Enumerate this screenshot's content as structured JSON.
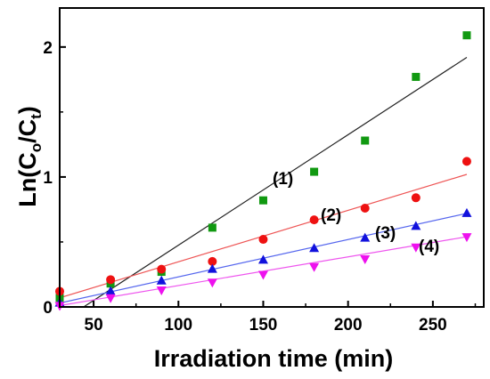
{
  "chart_data": {
    "type": "scatter",
    "title": "",
    "xlabel": "Irradiation time (min)",
    "ylabel": {
      "prefix": "Ln(C",
      "sub1": "o",
      "mid": "/C",
      "sub2": "t",
      "suffix": ")"
    },
    "xlim": [
      30,
      280
    ],
    "ylim": [
      0,
      2.3
    ],
    "xticks": [
      50,
      100,
      150,
      200,
      250
    ],
    "yticks": [
      0,
      1,
      2
    ],
    "grid": false,
    "legend": "none",
    "x": [
      30,
      60,
      90,
      120,
      150,
      180,
      210,
      240,
      270
    ],
    "series": [
      {
        "name": "(1)",
        "marker": "square",
        "color": "#119911",
        "line_color": "#222222",
        "values": [
          0.07,
          0.18,
          0.27,
          0.61,
          0.82,
          1.04,
          1.28,
          1.77,
          2.09
        ],
        "fit": {
          "x": [
            30,
            270
          ],
          "y": [
            -0.12,
            1.92
          ]
        }
      },
      {
        "name": "(2)",
        "marker": "circle",
        "color": "#ee1111",
        "line_color": "#ee5555",
        "values": [
          0.12,
          0.21,
          0.29,
          0.35,
          0.52,
          0.67,
          0.76,
          0.84,
          1.12
        ],
        "fit": {
          "x": [
            30,
            270
          ],
          "y": [
            0.07,
            1.02
          ]
        }
      },
      {
        "name": "(3)",
        "marker": "triangle-up",
        "color": "#1111dd",
        "line_color": "#5566ee",
        "values": [
          0.03,
          0.12,
          0.2,
          0.29,
          0.36,
          0.45,
          0.53,
          0.62,
          0.72
        ],
        "fit": {
          "x": [
            30,
            270
          ],
          "y": [
            0.03,
            0.72
          ]
        }
      },
      {
        "name": "(4)",
        "marker": "triangle-down",
        "color": "#ee11ee",
        "line_color": "#ee55ee",
        "values": [
          0.01,
          0.07,
          0.13,
          0.19,
          0.25,
          0.31,
          0.37,
          0.46,
          0.54
        ],
        "fit": {
          "x": [
            30,
            270
          ],
          "y": [
            0.01,
            0.54
          ]
        }
      }
    ]
  },
  "series_labels": [
    "(1)",
    "(2)",
    "(3)",
    "(4)"
  ]
}
